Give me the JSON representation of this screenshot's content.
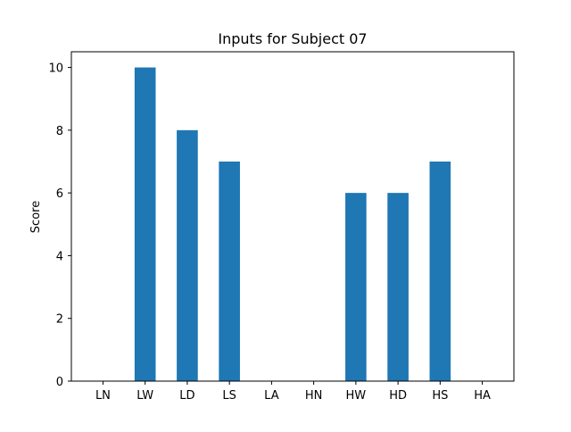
{
  "chart_data": {
    "type": "bar",
    "title": "Inputs for Subject 07",
    "xlabel": "",
    "ylabel": "Score",
    "categories": [
      "LN",
      "LW",
      "LD",
      "LS",
      "LA",
      "HN",
      "HW",
      "HD",
      "HS",
      "HA"
    ],
    "values": [
      0,
      10,
      8,
      7,
      0,
      0,
      6,
      6,
      7,
      0
    ],
    "ylim": [
      0,
      10.5
    ],
    "yticks": [
      0,
      2,
      4,
      6,
      8,
      10
    ],
    "grid": false,
    "bar_color": "#1f77b4"
  }
}
